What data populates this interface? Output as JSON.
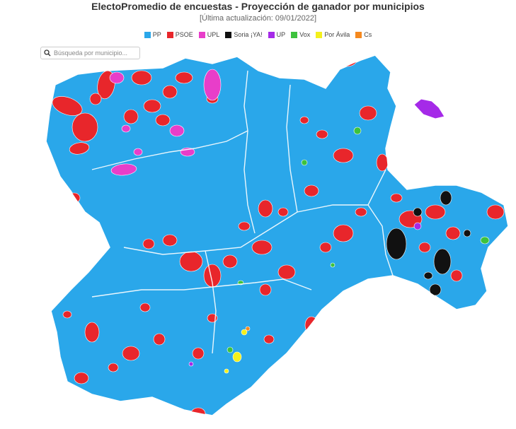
{
  "header": {
    "title": "ElectoPromedio de encuestas - Proyección de ganador por municipios",
    "subtitle": "[Última actualización: 09/01/2022]"
  },
  "legend": [
    {
      "label": "PP",
      "color": "#2aa7ea"
    },
    {
      "label": "PSOE",
      "color": "#e8262b"
    },
    {
      "label": "UPL",
      "color": "#e83ec9"
    },
    {
      "label": "Soria ¡YA!",
      "color": "#111111"
    },
    {
      "label": "UP",
      "color": "#a52ae8"
    },
    {
      "label": "Vox",
      "color": "#3dc23d"
    },
    {
      "label": "Por Ávila",
      "color": "#f4f01c"
    },
    {
      "label": "Cs",
      "color": "#f5891e"
    }
  ],
  "search": {
    "placeholder": "Búsqueda por municipio..."
  },
  "colors": {
    "border": "#ffffff",
    "background": "#ffffff"
  }
}
